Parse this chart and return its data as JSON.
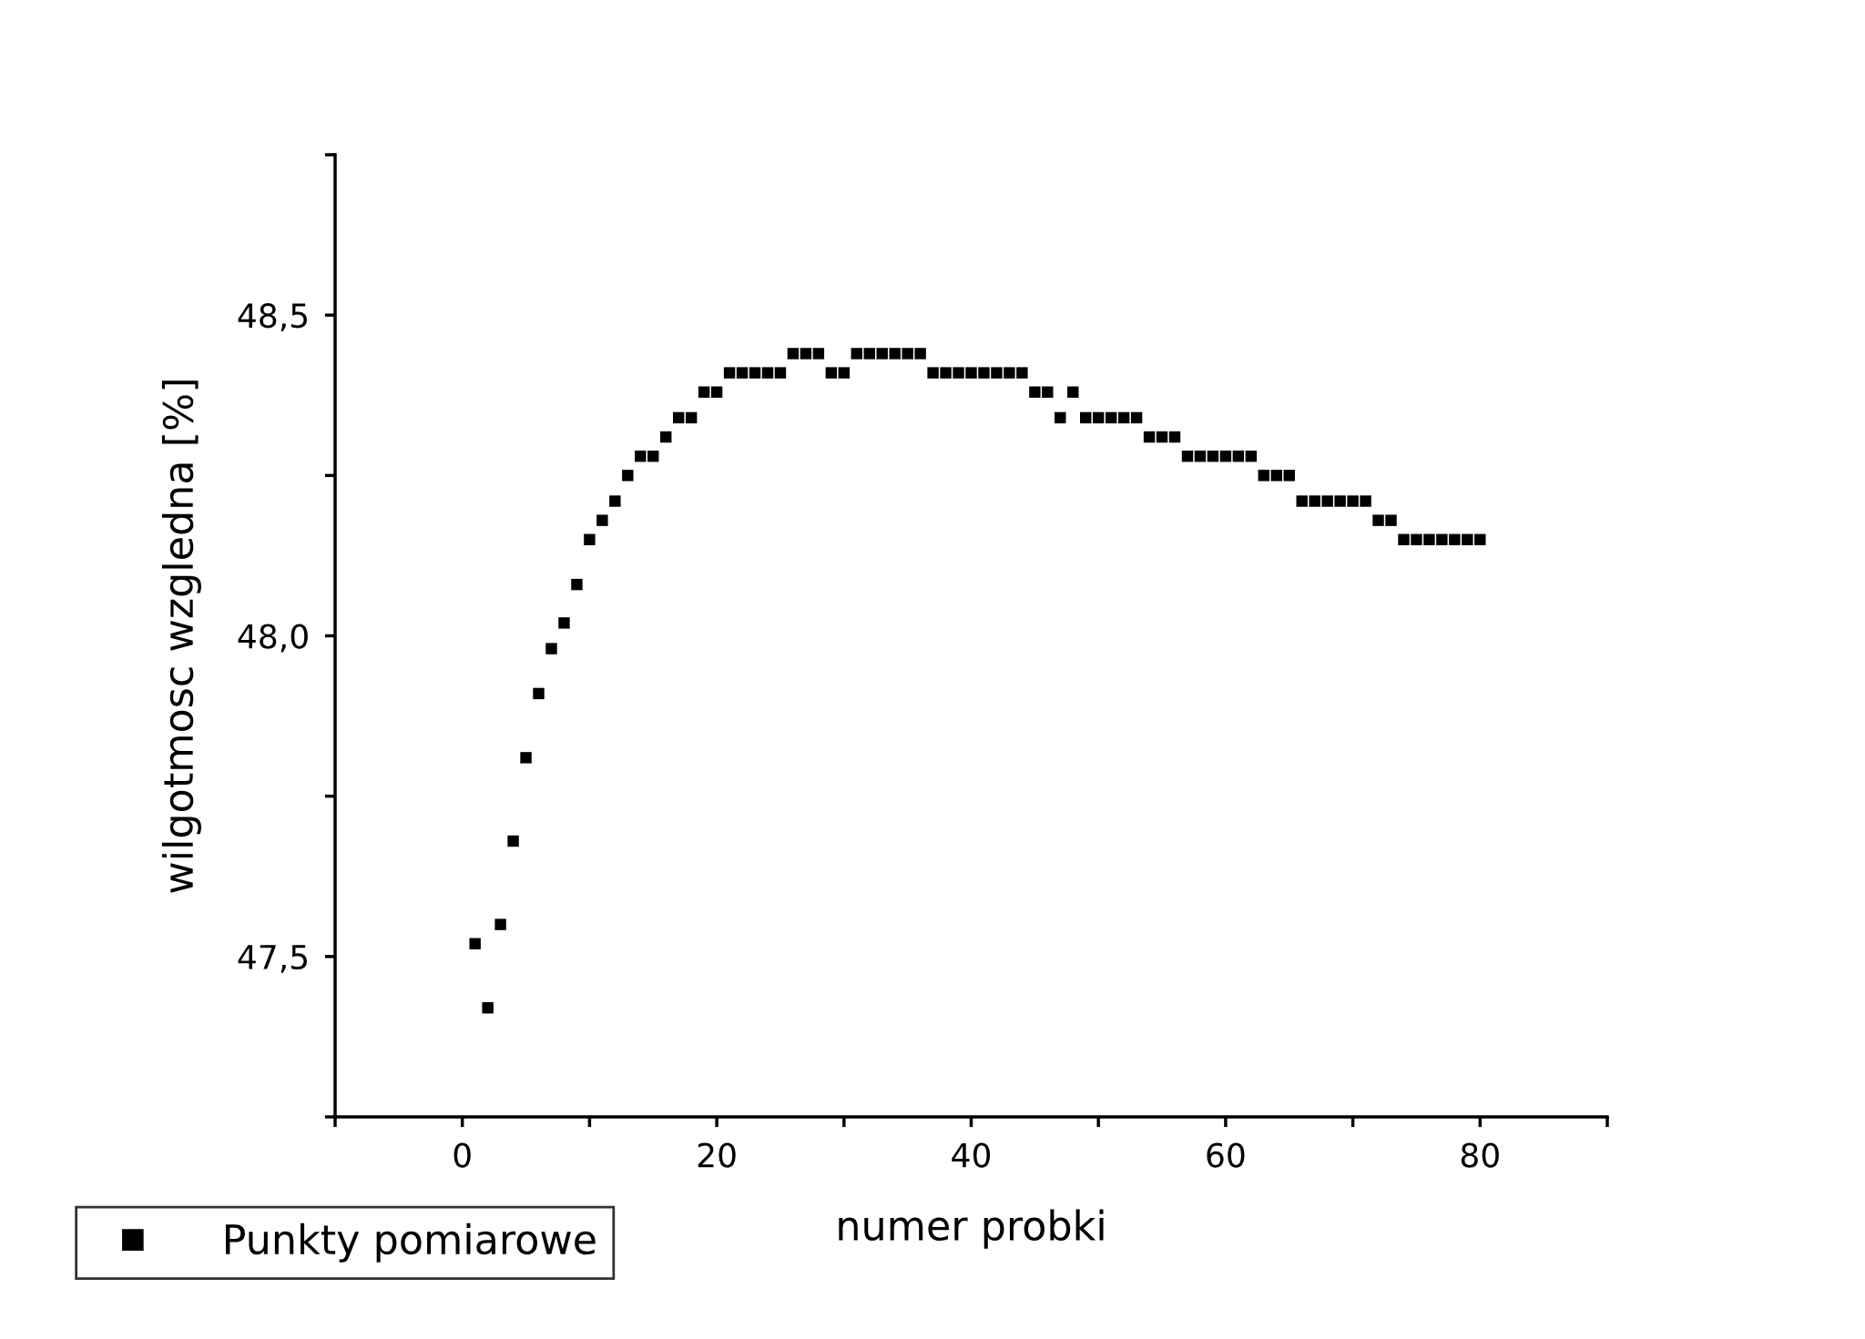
{
  "chart_data": {
    "type": "scatter",
    "xlabel": "numer probki",
    "ylabel": "wilgotmosc wzgledna [%]",
    "x": [
      1,
      2,
      3,
      4,
      5,
      6,
      7,
      8,
      9,
      10,
      11,
      12,
      13,
      14,
      15,
      16,
      17,
      18,
      19,
      20,
      21,
      22,
      23,
      24,
      25,
      26,
      27,
      28,
      29,
      30,
      31,
      32,
      33,
      34,
      35,
      36,
      37,
      38,
      39,
      40,
      41,
      42,
      43,
      44,
      45,
      46,
      47,
      48,
      49,
      50,
      51,
      52,
      53,
      54,
      55,
      56,
      57,
      58,
      59,
      60,
      61,
      62,
      63,
      64,
      65,
      66,
      67,
      68,
      69,
      70,
      71,
      72,
      73,
      74,
      75,
      76,
      77,
      78,
      79,
      80
    ],
    "series": [
      {
        "name": "Punkty pomiarowe",
        "color": "#000000",
        "values": [
          47.52,
          47.42,
          47.55,
          47.68,
          47.81,
          47.91,
          47.98,
          48.02,
          48.08,
          48.15,
          48.18,
          48.21,
          48.25,
          48.28,
          48.28,
          48.31,
          48.34,
          48.34,
          48.38,
          48.38,
          48.41,
          48.41,
          48.41,
          48.41,
          48.41,
          48.44,
          48.44,
          48.44,
          48.41,
          48.41,
          48.44,
          48.44,
          48.44,
          48.44,
          48.44,
          48.44,
          48.41,
          48.41,
          48.41,
          48.41,
          48.41,
          48.41,
          48.41,
          48.41,
          48.38,
          48.38,
          48.34,
          48.38,
          48.34,
          48.34,
          48.34,
          48.34,
          48.34,
          48.31,
          48.31,
          48.31,
          48.28,
          48.28,
          48.28,
          48.28,
          48.28,
          48.28,
          48.25,
          48.25,
          48.25,
          48.21,
          48.21,
          48.21,
          48.21,
          48.21,
          48.21,
          48.18,
          48.18,
          48.15,
          48.15,
          48.15,
          48.15,
          48.15,
          48.15,
          48.15
        ]
      }
    ],
    "xlim": [
      -10,
      90
    ],
    "xticks": [
      {
        "value": -10,
        "label": null
      },
      0,
      {
        "value": 10,
        "label": null
      },
      20,
      {
        "value": 30,
        "label": null
      },
      40,
      {
        "value": 50,
        "label": null
      },
      60,
      {
        "value": 70,
        "label": null
      },
      80,
      {
        "value": 90,
        "label": null
      }
    ],
    "ylim": [
      47.25,
      48.75
    ],
    "yticks": [
      {
        "value": 47.25,
        "label": null
      },
      {
        "value": 47.5,
        "label": "47,5"
      },
      {
        "value": 47.75,
        "label": null
      },
      {
        "value": 48.0,
        "label": "48,0"
      },
      {
        "value": 48.25,
        "label": null
      },
      {
        "value": 48.5,
        "label": "48,5"
      },
      {
        "value": 48.75,
        "label": null
      }
    ],
    "marker": "square",
    "grid": false,
    "legend": "bottom left"
  }
}
